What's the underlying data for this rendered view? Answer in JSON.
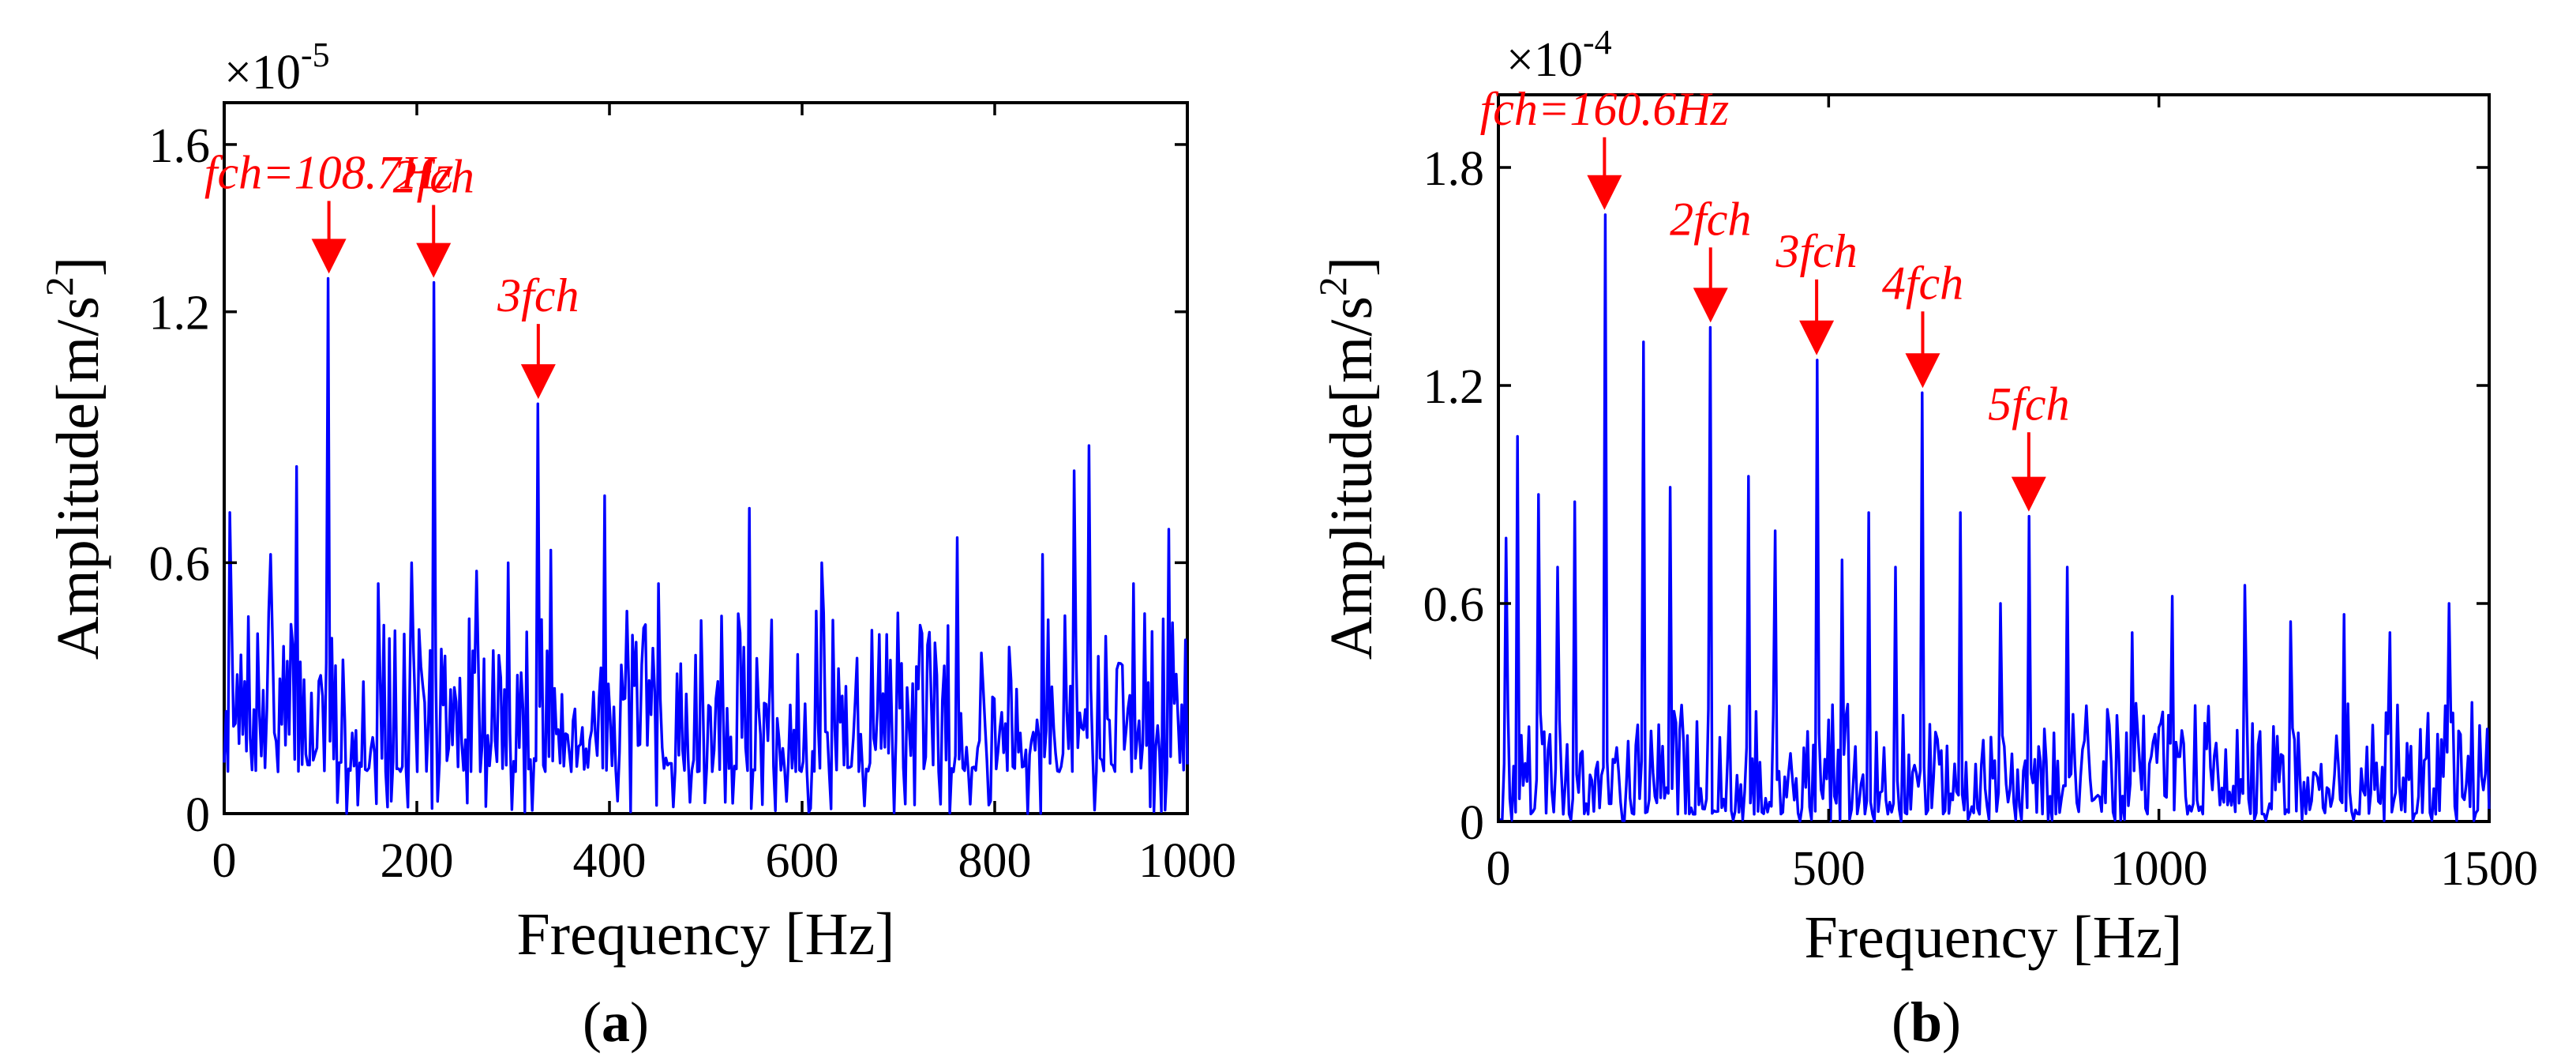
{
  "chart_data": [
    {
      "type": "line",
      "caption": "a",
      "xlabel": "Frequency [Hz]",
      "ylabel_main": "Amplitude[m/s",
      "ylabel_sup": "2",
      "ylabel_end": "]",
      "scale_label": "×10",
      "scale_exponent": "-5",
      "xlim": [
        0,
        1000
      ],
      "ylim": [
        0,
        1.7
      ],
      "xticks": [
        0,
        200,
        400,
        600,
        800,
        1000
      ],
      "xtick_labels": [
        "0",
        "200",
        "400",
        "600",
        "800",
        "1000"
      ],
      "yticks": [
        0,
        0.6,
        1.2,
        1.6
      ],
      "ytick_labels": [
        "0",
        "0.6",
        "1.2",
        "1.6"
      ],
      "series_color": "#0000ff",
      "annotation_color": "#ff0000",
      "fundamental_hz": 108.7,
      "harmonics": [
        {
          "label": "fch=108.7Hz",
          "x": 108.7,
          "peak": 1.28
        },
        {
          "label": "2fch",
          "x": 217.4,
          "peak": 1.27
        },
        {
          "label": "3fch",
          "x": 326.1,
          "peak": 0.98
        }
      ],
      "other_peaks": [
        [
          5,
          0.72
        ],
        [
          48,
          0.62
        ],
        [
          75,
          0.83
        ],
        [
          160,
          0.55
        ],
        [
          195,
          0.6
        ],
        [
          262,
          0.58
        ],
        [
          295,
          0.6
        ],
        [
          340,
          0.63
        ],
        [
          395,
          0.76
        ],
        [
          450,
          0.55
        ],
        [
          545,
          0.73
        ],
        [
          620,
          0.6
        ],
        [
          700,
          0.48
        ],
        [
          762,
          0.66
        ],
        [
          850,
          0.62
        ],
        [
          883,
          0.82
        ],
        [
          898,
          0.88
        ],
        [
          945,
          0.55
        ],
        [
          980,
          0.68
        ]
      ],
      "noise_range": [
        0.1,
        0.45
      ],
      "seed": 7
    },
    {
      "type": "line",
      "caption": "b",
      "xlabel": "Frequency [Hz]",
      "ylabel_main": "Amplitude[m/s",
      "ylabel_sup": "2",
      "ylabel_end": "]",
      "scale_label": "×10",
      "scale_exponent": "-4",
      "xlim": [
        0,
        1500
      ],
      "ylim": [
        0,
        2.0
      ],
      "xticks": [
        0,
        500,
        1000,
        1500
      ],
      "xtick_labels": [
        "0",
        "500",
        "1000",
        "1500"
      ],
      "yticks": [
        0,
        0.6,
        1.2,
        1.8
      ],
      "ytick_labels": [
        "0",
        "0.6",
        "1.2",
        "1.8"
      ],
      "series_color": "#0000ff",
      "annotation_color": "#ff0000",
      "fundamental_hz": 160.6,
      "harmonics": [
        {
          "label": "fch=160.6Hz",
          "x": 160.6,
          "peak": 1.67
        },
        {
          "label": "2fch",
          "x": 321.2,
          "peak": 1.36
        },
        {
          "label": "3fch",
          "x": 481.8,
          "peak": 1.27
        },
        {
          "label": "4fch",
          "x": 642.4,
          "peak": 1.18
        },
        {
          "label": "5fch",
          "x": 803.0,
          "peak": 0.84
        }
      ],
      "other_peaks": [
        [
          12,
          0.78
        ],
        [
          30,
          1.06
        ],
        [
          60,
          0.9
        ],
        [
          90,
          0.7
        ],
        [
          115,
          0.88
        ],
        [
          220,
          1.32
        ],
        [
          260,
          0.92
        ],
        [
          380,
          0.95
        ],
        [
          420,
          0.8
        ],
        [
          520,
          0.72
        ],
        [
          560,
          0.85
        ],
        [
          600,
          0.7
        ],
        [
          700,
          0.85
        ],
        [
          760,
          0.6
        ],
        [
          860,
          0.7
        ],
        [
          960,
          0.52
        ],
        [
          1020,
          0.62
        ],
        [
          1130,
          0.65
        ],
        [
          1200,
          0.55
        ],
        [
          1280,
          0.57
        ],
        [
          1350,
          0.52
        ],
        [
          1440,
          0.6
        ]
      ],
      "noise_range": [
        0.02,
        0.3
      ],
      "seed": 19
    }
  ]
}
